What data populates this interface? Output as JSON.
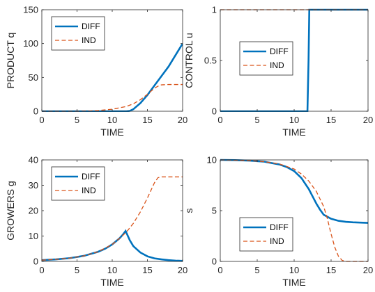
{
  "chart_data": [
    {
      "type": "line",
      "xlabel": "TIME",
      "ylabel": "PRODUCT q",
      "xlim": [
        0,
        20
      ],
      "ylim": [
        0,
        150
      ],
      "xticks": [
        0,
        5,
        10,
        15,
        20
      ],
      "yticks": [
        0,
        50,
        100,
        150
      ],
      "legend_position": "top-left",
      "series": [
        {
          "name": "DIFF",
          "style": "solid",
          "x": [
            0,
            5,
            10,
            11.5,
            12,
            12.5,
            13,
            14,
            15,
            16,
            17,
            18,
            19,
            20
          ],
          "y": [
            0,
            0,
            0,
            0,
            0,
            0.5,
            3,
            12,
            24,
            38,
            52,
            66,
            83,
            100
          ]
        },
        {
          "name": "IND",
          "style": "dashed",
          "x": [
            0,
            5,
            7,
            8,
            9,
            10,
            11,
            12,
            13,
            14,
            15,
            16,
            16.5,
            17,
            18,
            19,
            20
          ],
          "y": [
            0,
            0,
            0.5,
            1,
            2,
            3,
            5,
            7,
            11,
            17,
            25,
            34,
            37,
            39,
            39.5,
            39.5,
            39.5
          ]
        }
      ]
    },
    {
      "type": "line",
      "xlabel": "TIME",
      "ylabel": "CONTROL u",
      "xlim": [
        0,
        20
      ],
      "ylim": [
        0,
        1
      ],
      "xticks": [
        0,
        5,
        10,
        15,
        20
      ],
      "yticks": [
        0,
        0.5,
        1
      ],
      "legend_position": "center-left",
      "series": [
        {
          "name": "DIFF",
          "style": "solid",
          "x": [
            0,
            11.8,
            11.95,
            12.05,
            20
          ],
          "y": [
            0,
            0,
            0.5,
            1,
            1
          ]
        },
        {
          "name": "IND",
          "style": "dashed",
          "x": [
            0,
            20
          ],
          "y": [
            1,
            1
          ]
        }
      ]
    },
    {
      "type": "line",
      "xlabel": "TIME",
      "ylabel": "GROWERS g",
      "xlim": [
        0,
        20
      ],
      "ylim": [
        0,
        40
      ],
      "xticks": [
        0,
        5,
        10,
        15,
        20
      ],
      "yticks": [
        0,
        10,
        20,
        30,
        40
      ],
      "legend_position": "top-left",
      "series": [
        {
          "name": "DIFF",
          "style": "solid",
          "x": [
            0,
            2,
            4,
            6,
            8,
            9,
            10,
            11,
            11.5,
            11.9,
            12.5,
            13,
            14,
            15,
            16,
            17,
            18,
            19,
            20
          ],
          "y": [
            0.5,
            0.8,
            1.3,
            2.2,
            3.8,
            5,
            6.7,
            9,
            10.5,
            12,
            8.3,
            6,
            3.5,
            2,
            1.2,
            0.8,
            0.5,
            0.3,
            0.2
          ]
        },
        {
          "name": "IND",
          "style": "dashed",
          "x": [
            0,
            2,
            4,
            6,
            8,
            10,
            11,
            12,
            13,
            14,
            15,
            16,
            16.5,
            17,
            18,
            19,
            20
          ],
          "y": [
            0.5,
            0.8,
            1.3,
            2.2,
            3.8,
            6.7,
            9,
            11.5,
            15,
            19.5,
            25,
            31,
            33,
            33.3,
            33.3,
            33.3,
            33.3
          ]
        }
      ]
    },
    {
      "type": "line",
      "xlabel": "TIME",
      "ylabel": "s",
      "xlim": [
        0,
        20
      ],
      "ylim": [
        0,
        10
      ],
      "xticks": [
        0,
        5,
        10,
        15,
        20
      ],
      "yticks": [
        0,
        5,
        10
      ],
      "legend_position": "bottom-left",
      "series": [
        {
          "name": "DIFF",
          "style": "solid",
          "x": [
            0,
            2,
            4,
            6,
            8,
            9,
            10,
            11,
            12,
            12.5,
            13,
            13.5,
            14,
            15,
            16,
            17,
            18,
            19,
            20
          ],
          "y": [
            10,
            9.98,
            9.93,
            9.82,
            9.55,
            9.3,
            8.9,
            8.2,
            7.1,
            6.4,
            5.7,
            5.1,
            4.6,
            4.2,
            4.0,
            3.9,
            3.85,
            3.82,
            3.8
          ]
        },
        {
          "name": "IND",
          "style": "dashed",
          "x": [
            0,
            2,
            4,
            6,
            8,
            10,
            11,
            12,
            13,
            14,
            14.5,
            15,
            15.5,
            16,
            16.5,
            17,
            18,
            20
          ],
          "y": [
            10,
            9.98,
            9.93,
            9.82,
            9.6,
            9.1,
            8.6,
            7.9,
            6.9,
            5.4,
            4.2,
            2.7,
            1.4,
            0.5,
            0.1,
            0,
            0,
            0
          ]
        }
      ]
    }
  ],
  "style": {
    "diff_color": "#0072bd",
    "ind_color": "#d95319",
    "axis_color": "#262626"
  }
}
